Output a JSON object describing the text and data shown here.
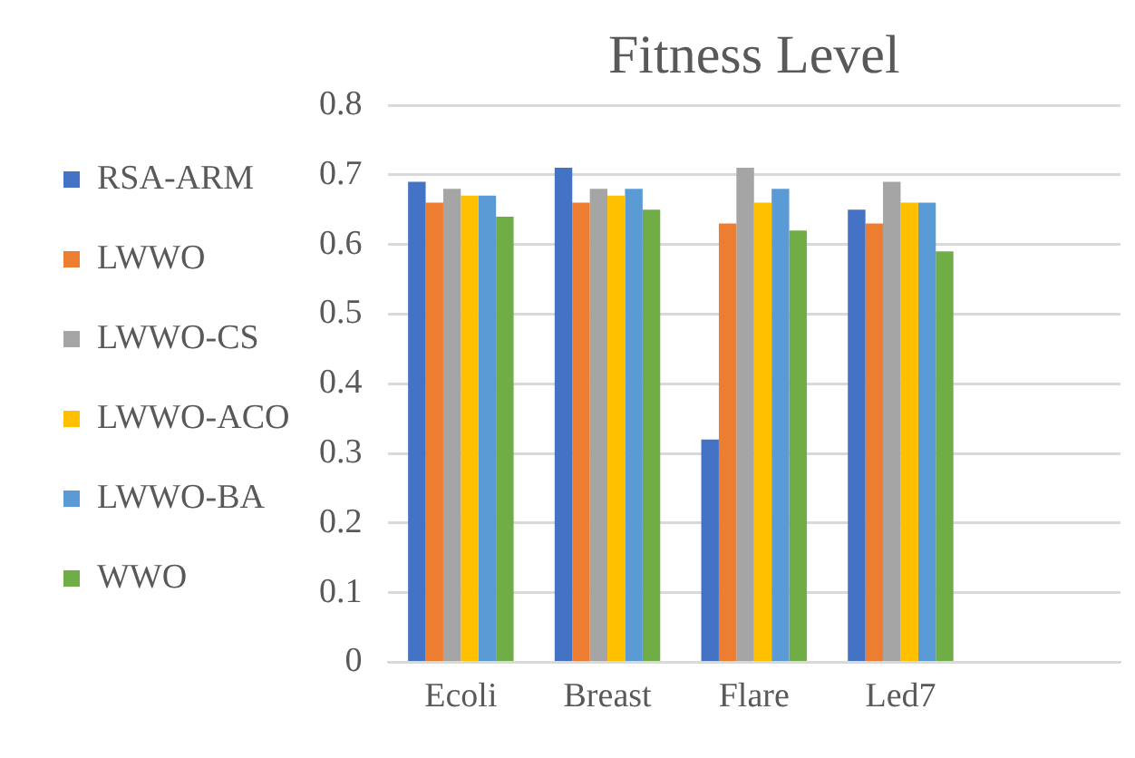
{
  "chart_data": {
    "type": "bar",
    "title": "Fitness Level",
    "categories": [
      "Ecoli",
      "Breast",
      "Flare",
      "Led7",
      null
    ],
    "series": [
      {
        "name": "RSA-ARM",
        "color": "#4472c4",
        "values": [
          0.69,
          0.71,
          0.32,
          0.65,
          null
        ]
      },
      {
        "name": "LWWO",
        "color": "#ed7d31",
        "values": [
          0.66,
          0.66,
          0.63,
          0.63,
          null
        ]
      },
      {
        "name": "LWWO-CS",
        "color": "#a5a5a5",
        "values": [
          0.68,
          0.68,
          0.71,
          0.69,
          null
        ]
      },
      {
        "name": "LWWO-ACO",
        "color": "#ffc000",
        "values": [
          0.67,
          0.67,
          0.66,
          0.66,
          null
        ]
      },
      {
        "name": "LWWO-BA",
        "color": "#5b9bd5",
        "values": [
          0.67,
          0.68,
          0.68,
          0.66,
          null
        ]
      },
      {
        "name": "WWO",
        "color": "#70ad47",
        "values": [
          0.64,
          0.65,
          0.62,
          0.59,
          null
        ]
      }
    ],
    "ylim": [
      0,
      0.8
    ],
    "yticks": [
      0,
      0.1,
      0.2,
      0.3,
      0.4,
      0.5,
      0.6,
      0.7,
      0.8
    ],
    "grid": "y",
    "legend": "left"
  }
}
